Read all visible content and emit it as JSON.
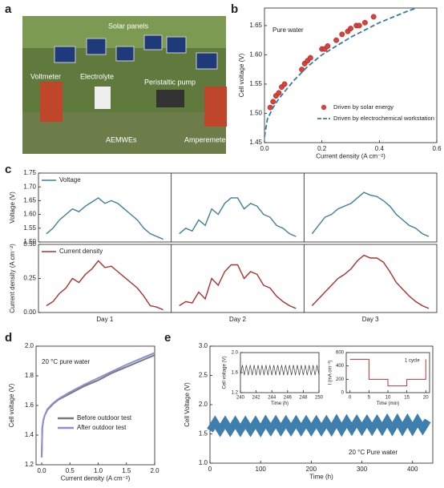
{
  "panel_labels": [
    "a",
    "b",
    "c",
    "d",
    "e"
  ],
  "photo": {
    "labels": [
      "Solar panels",
      "Voltmeter",
      "Electrolyte",
      "Peristaltic pump",
      "AEMWEs",
      "Amperemeter"
    ]
  },
  "chart_data": [
    {
      "type": "scatter",
      "annotation": "Pure water",
      "xlabel": "Current density (A cm⁻²)",
      "ylabel": "Cell voltage (V)",
      "xlim": [
        0,
        0.6
      ],
      "xticks": [
        {
          "value": 0,
          "label": "0.0"
        },
        0.2,
        0.4,
        0.6
      ],
      "ylim": [
        1.45,
        1.68
      ],
      "yticks": [
        1.45,
        {
          "value": 1.5,
          "label": "1.50"
        },
        1.55,
        {
          "value": 1.6,
          "label": "1.60"
        },
        1.65
      ],
      "legend": "lower right",
      "series": [
        {
          "name": "Driven by solar energy",
          "type": "scatter",
          "color": "#d9413a",
          "x": [
            0.02,
            0.03,
            0.04,
            0.05,
            0.06,
            0.07,
            0.13,
            0.14,
            0.15,
            0.16,
            0.2,
            0.21,
            0.22,
            0.25,
            0.27,
            0.29,
            0.3,
            0.32,
            0.33,
            0.35,
            0.38
          ],
          "values": [
            1.51,
            1.52,
            1.53,
            1.535,
            1.545,
            1.55,
            1.575,
            1.585,
            1.59,
            1.595,
            1.61,
            1.61,
            1.615,
            1.625,
            1.635,
            1.64,
            1.645,
            1.65,
            1.65,
            1.655,
            1.665
          ]
        },
        {
          "name": "Driven by electrochemical workstation",
          "type": "line",
          "style": "dashed",
          "color": "#3a78a8",
          "x": [
            0,
            0.01,
            0.03,
            0.05,
            0.1,
            0.15,
            0.2,
            0.3,
            0.4,
            0.5,
            0.53
          ],
          "values": [
            1.46,
            1.49,
            1.51,
            1.525,
            1.555,
            1.58,
            1.6,
            1.63,
            1.655,
            1.675,
            1.68
          ]
        }
      ]
    },
    {
      "type": "line",
      "ylabel": "Voltage (V)",
      "ylim": [
        1.5,
        1.75
      ],
      "yticks": [
        {
          "value": 1.5,
          "label": "1.50"
        },
        1.55,
        {
          "value": 1.6,
          "label": "1.60"
        },
        1.65,
        {
          "value": 1.7,
          "label": "1.70"
        },
        1.75
      ],
      "legend": "upper left",
      "series": [
        {
          "name": "Voltage",
          "color": "#3f7f9a",
          "values": [
            [
              1.53,
              1.55,
              1.58,
              1.6,
              1.62,
              1.61,
              1.63,
              1.645,
              1.66,
              1.64,
              1.65,
              1.64,
              1.62,
              1.6,
              1.58,
              1.55,
              1.53,
              1.52,
              1.51
            ],
            [
              1.53,
              1.55,
              1.54,
              1.58,
              1.56,
              1.62,
              1.6,
              1.64,
              1.66,
              1.66,
              1.62,
              1.64,
              1.63,
              1.6,
              1.59,
              1.56,
              1.55,
              1.53,
              1.52
            ],
            [
              1.53,
              1.56,
              1.59,
              1.6,
              1.62,
              1.63,
              1.64,
              1.66,
              1.68,
              1.67,
              1.665,
              1.65,
              1.63,
              1.6,
              1.58,
              1.56,
              1.55,
              1.53,
              1.52
            ]
          ]
        }
      ]
    },
    {
      "type": "line",
      "ylabel": "Current density (A cm⁻²)",
      "ylim": [
        0,
        0.5
      ],
      "yticks": [
        {
          "value": 0,
          "label": "0.00"
        },
        0.25,
        {
          "value": 0.5,
          "label": "0.50"
        }
      ],
      "categories": [
        "Day 1",
        "Day 2",
        "Day 3"
      ],
      "legend": "upper left",
      "series": [
        {
          "name": "Current density",
          "color": "#a8332f",
          "values": [
            [
              0.05,
              0.08,
              0.14,
              0.18,
              0.25,
              0.22,
              0.28,
              0.32,
              0.38,
              0.33,
              0.34,
              0.3,
              0.26,
              0.22,
              0.18,
              0.12,
              0.05,
              0.04,
              0.02
            ],
            [
              0.05,
              0.08,
              0.07,
              0.15,
              0.1,
              0.25,
              0.2,
              0.3,
              0.35,
              0.35,
              0.25,
              0.3,
              0.28,
              0.2,
              0.18,
              0.12,
              0.08,
              0.05,
              0.03
            ],
            [
              0.05,
              0.1,
              0.15,
              0.2,
              0.25,
              0.28,
              0.32,
              0.38,
              0.42,
              0.4,
              0.4,
              0.37,
              0.3,
              0.22,
              0.17,
              0.12,
              0.08,
              0.05,
              0.03
            ]
          ]
        }
      ]
    },
    {
      "type": "line",
      "annotation": "20 °C pure water",
      "xlabel": "Current density (A cm⁻²)",
      "ylabel": "Cell voltage (V)",
      "xlim": [
        -0.1,
        2.0
      ],
      "xticks": [
        {
          "value": 0,
          "label": "0.0"
        },
        0.5,
        {
          "value": 1,
          "label": "1.0"
        },
        1.5,
        {
          "value": 2,
          "label": "2.0"
        }
      ],
      "ylim": [
        1.2,
        2.0
      ],
      "yticks": [
        1.2,
        1.4,
        1.6,
        1.8,
        {
          "value": 2,
          "label": "2.0"
        }
      ],
      "legend": "lower right",
      "series": [
        {
          "name": "Before outdoor test",
          "color": "#7a7a7a",
          "x": [
            0,
            0.01,
            0.03,
            0.05,
            0.1,
            0.2,
            0.3,
            0.5,
            0.75,
            1.0,
            1.25,
            1.5,
            1.75,
            2.0
          ],
          "values": [
            1.25,
            1.45,
            1.5,
            1.53,
            1.57,
            1.61,
            1.64,
            1.68,
            1.73,
            1.77,
            1.82,
            1.86,
            1.9,
            1.94
          ]
        },
        {
          "name": "After outdoor test",
          "color": "#8a8fd6",
          "x": [
            0,
            0.01,
            0.03,
            0.05,
            0.1,
            0.2,
            0.3,
            0.5,
            0.75,
            1.0,
            1.25,
            1.5,
            1.75,
            2.0
          ],
          "values": [
            1.25,
            1.45,
            1.5,
            1.53,
            1.575,
            1.615,
            1.645,
            1.69,
            1.74,
            1.785,
            1.83,
            1.875,
            1.915,
            1.955
          ]
        }
      ]
    },
    {
      "type": "line",
      "annotation": "20 °C Pure water",
      "xlabel": "Time (h)",
      "ylabel": "Cell Voltage (V)",
      "xlim": [
        0,
        440
      ],
      "xticks": [
        0,
        100,
        200,
        300,
        400
      ],
      "ylim": [
        1.0,
        3.0
      ],
      "yticks": [
        {
          "value": 1,
          "label": "1.0"
        },
        1.5,
        {
          "value": 2,
          "label": "2.0"
        },
        2.5,
        {
          "value": 3,
          "label": "3.0"
        }
      ],
      "series": [
        {
          "name": "Cell voltage",
          "color": "#3f7fae",
          "x": [
            0,
            10,
            20,
            30,
            40,
            50,
            60,
            70,
            80,
            90,
            100,
            110,
            120,
            130,
            140,
            150,
            160,
            170,
            180,
            190,
            200,
            210,
            220,
            230,
            240,
            250,
            260,
            270,
            280,
            290,
            300,
            310,
            320,
            330,
            340,
            350,
            360,
            370,
            380,
            390,
            400,
            410,
            420,
            430
          ],
          "values": [
            1.56,
            1.7,
            1.56,
            1.7,
            1.56,
            1.7,
            1.56,
            1.7,
            1.56,
            1.7,
            1.56,
            1.71,
            1.57,
            1.71,
            1.57,
            1.71,
            1.57,
            1.71,
            1.57,
            1.71,
            1.57,
            1.71,
            1.57,
            1.71,
            1.57,
            1.72,
            1.57,
            1.72,
            1.58,
            1.72,
            1.58,
            1.72,
            1.58,
            1.72,
            1.58,
            1.73,
            1.58,
            1.73,
            1.58,
            1.73,
            1.58,
            1.73,
            1.59,
            1.73
          ]
        }
      ]
    },
    {
      "type": "line",
      "xlabel": "Time (h)",
      "ylabel": "Cell voltage (V)",
      "xlim": [
        240,
        250
      ],
      "xticks": [
        240,
        242,
        244,
        246,
        248,
        250
      ],
      "ylim": [
        1.2,
        2.0
      ],
      "yticks": [
        1.2,
        1.6,
        {
          "value": 2,
          "label": "2.0"
        }
      ],
      "series": [
        {
          "name": "Cell voltage",
          "color": "#444444",
          "x": [
            240,
            240.25,
            240.5,
            240.75,
            241,
            241.25,
            241.5,
            241.75,
            242,
            242.25,
            242.5,
            242.75,
            243,
            243.25,
            243.5,
            243.75,
            244,
            244.25,
            244.5,
            244.75,
            245,
            245.25,
            245.5,
            245.75,
            246,
            246.25,
            246.5,
            246.75,
            247,
            247.25,
            247.5,
            247.75,
            248,
            248.25,
            248.5,
            248.75,
            249,
            249.25,
            249.5,
            249.75,
            250
          ],
          "values": [
            1.55,
            1.75,
            1.55,
            1.75,
            1.55,
            1.75,
            1.55,
            1.75,
            1.55,
            1.75,
            1.55,
            1.75,
            1.55,
            1.75,
            1.55,
            1.75,
            1.55,
            1.75,
            1.55,
            1.75,
            1.55,
            1.75,
            1.55,
            1.75,
            1.55,
            1.75,
            1.55,
            1.75,
            1.55,
            1.75,
            1.55,
            1.75,
            1.55,
            1.75,
            1.55,
            1.75,
            1.55,
            1.75,
            1.55,
            1.75,
            1.55
          ]
        }
      ]
    },
    {
      "type": "line",
      "annotation": "1 cycle",
      "xlabel": "Time (min)",
      "ylabel": "I (mA cm⁻²)",
      "xlim": [
        -1,
        21
      ],
      "xticks": [
        0,
        5,
        10,
        15,
        20
      ],
      "ylim": [
        0,
        600
      ],
      "yticks": [
        0,
        200,
        400,
        600
      ],
      "series": [
        {
          "name": "Current",
          "color": "#b03a3a",
          "x": [
            0,
            5,
            5,
            10,
            10,
            15,
            15,
            20,
            20
          ],
          "values": [
            500,
            500,
            200,
            200,
            100,
            100,
            200,
            200,
            500
          ]
        }
      ]
    }
  ]
}
